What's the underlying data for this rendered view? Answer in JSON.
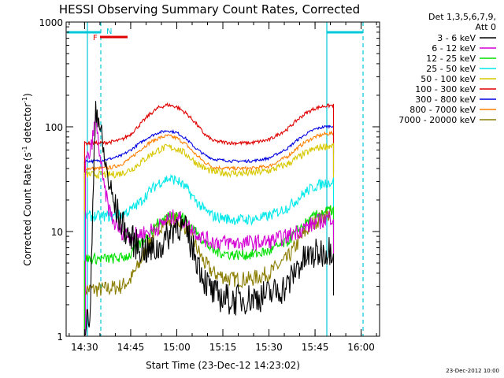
{
  "chart_data": {
    "type": "line",
    "title": "HESSI Observing Summary Count Rates, Corrected",
    "xlabel": "Start Time (23-Dec-12 14:23:02)",
    "ylabel": "Corrected Count Rate (s",
    "ylabel_sup1": "-1",
    "ylabel_mid": " detector",
    "ylabel_sup2": "-1",
    "ylabel_end": ")",
    "y_scale": "log",
    "ylim": [
      1,
      1000
    ],
    "xlim_minutes": [
      14.4,
      16.1
    ],
    "x_ticks": [
      {
        "at": 14.5,
        "label": "14:30"
      },
      {
        "at": 14.75,
        "label": "14:45"
      },
      {
        "at": 15.0,
        "label": "15:00"
      },
      {
        "at": 15.25,
        "label": "15:15"
      },
      {
        "at": 15.5,
        "label": "15:30"
      },
      {
        "at": 15.75,
        "label": "15:45"
      },
      {
        "at": 16.0,
        "label": "16:00"
      }
    ],
    "y_ticks": [
      {
        "at": 1,
        "label": "1"
      },
      {
        "at": 10,
        "label": "10"
      },
      {
        "at": 100,
        "label": "100"
      },
      {
        "at": 1000,
        "label": "1000"
      }
    ],
    "legend_header": [
      "Det 1,3,5,6,7,9,",
      "Att 0"
    ],
    "legend_placement": "right",
    "series": [
      {
        "name": "3 - 6 keV",
        "color": "#000000",
        "x": [
          14.5,
          14.53,
          14.56,
          14.58,
          14.6,
          14.63,
          14.66,
          14.7,
          14.75,
          14.8,
          14.85,
          14.9,
          14.95,
          15.0,
          15.05,
          15.1,
          15.15,
          15.2,
          15.3,
          15.4,
          15.5,
          15.6,
          15.65,
          15.7,
          15.75,
          15.8,
          15.85
        ],
        "y": [
          1.2,
          1.6,
          170,
          110,
          60,
          30,
          18,
          12,
          8.5,
          7,
          6.5,
          6.8,
          9,
          12,
          10,
          6,
          3.5,
          2.5,
          2.2,
          2.3,
          2.5,
          3,
          4.5,
          5.5,
          6,
          6.5,
          7
        ]
      },
      {
        "name": "6 - 12 keV",
        "color": "#d400d4",
        "x": [
          14.5,
          14.53,
          14.56,
          14.58,
          14.6,
          14.63,
          14.66,
          14.7,
          14.75,
          14.8,
          14.85,
          14.9,
          14.95,
          15.0,
          15.05,
          15.1,
          15.15,
          15.2,
          15.3,
          15.4,
          15.5,
          15.6,
          15.65,
          15.7,
          15.75,
          15.8,
          15.85
        ],
        "y": [
          45,
          55,
          120,
          60,
          30,
          17,
          12,
          10,
          9,
          9.5,
          10,
          11,
          13,
          14,
          12,
          10,
          8.5,
          8,
          7.8,
          7.8,
          8,
          9,
          10,
          11,
          12,
          13,
          14
        ]
      },
      {
        "name": "12 - 25 keV",
        "color": "#00e000",
        "x": [
          14.5,
          14.55,
          14.6,
          14.65,
          14.7,
          14.75,
          14.8,
          14.85,
          14.9,
          14.95,
          15.0,
          15.05,
          15.1,
          15.15,
          15.2,
          15.3,
          15.4,
          15.5,
          15.6,
          15.65,
          15.7,
          15.75,
          15.8,
          15.85
        ],
        "y": [
          5.5,
          5.5,
          5.5,
          5.5,
          5.6,
          6,
          7.5,
          9.5,
          12,
          14,
          15,
          13,
          10,
          8,
          6.5,
          6,
          6,
          6.5,
          8,
          10,
          12,
          14,
          15.5,
          16
        ]
      },
      {
        "name": "25 - 50 keV",
        "color": "#00e8e8",
        "x": [
          14.5,
          14.55,
          14.6,
          14.65,
          14.7,
          14.75,
          14.8,
          14.85,
          14.9,
          14.95,
          15.0,
          15.05,
          15.1,
          15.15,
          15.2,
          15.3,
          15.4,
          15.5,
          15.6,
          15.65,
          15.7,
          15.75,
          15.8,
          15.85
        ],
        "y": [
          14,
          14,
          14,
          14,
          14.5,
          16,
          19,
          24,
          29,
          32,
          31,
          26,
          20,
          16,
          14,
          13,
          13,
          14,
          17,
          20,
          24,
          27,
          29,
          30
        ]
      },
      {
        "name": "50 - 100 keV",
        "color": "#d8c800",
        "x": [
          14.5,
          14.55,
          14.6,
          14.65,
          14.7,
          14.75,
          14.8,
          14.85,
          14.9,
          14.95,
          15.0,
          15.05,
          15.1,
          15.15,
          15.2,
          15.3,
          15.4,
          15.5,
          15.6,
          15.65,
          15.7,
          15.75,
          15.8,
          15.85
        ],
        "y": [
          35,
          35,
          35,
          35,
          36,
          39,
          45,
          53,
          60,
          64,
          62,
          55,
          46,
          40,
          37,
          36,
          36,
          38,
          44,
          50,
          56,
          62,
          65,
          66
        ]
      },
      {
        "name": "100 - 300 keV",
        "color": "#e00000",
        "x": [
          14.5,
          14.55,
          14.6,
          14.65,
          14.7,
          14.75,
          14.8,
          14.85,
          14.9,
          14.95,
          15.0,
          15.05,
          15.1,
          15.15,
          15.2,
          15.3,
          15.4,
          15.5,
          15.6,
          15.65,
          15.7,
          15.75,
          15.8,
          15.85
        ],
        "y": [
          70,
          70,
          70,
          72,
          75,
          85,
          105,
          130,
          152,
          162,
          155,
          135,
          110,
          85,
          73,
          70,
          70,
          75,
          95,
          115,
          135,
          150,
          158,
          160
        ]
      },
      {
        "name": "300 - 800 keV",
        "color": "#0000e0",
        "x": [
          14.5,
          14.55,
          14.6,
          14.65,
          14.7,
          14.75,
          14.8,
          14.85,
          14.9,
          14.95,
          15.0,
          15.05,
          15.1,
          15.15,
          15.2,
          15.3,
          15.4,
          15.5,
          15.6,
          15.65,
          15.7,
          15.75,
          15.8,
          15.85
        ],
        "y": [
          47,
          47,
          48,
          50,
          53,
          60,
          70,
          80,
          88,
          92,
          88,
          77,
          63,
          54,
          49,
          47,
          47,
          50,
          62,
          74,
          85,
          95,
          100,
          102
        ]
      },
      {
        "name": "800 - 7000 keV",
        "color": "#ff8000",
        "x": [
          14.5,
          14.55,
          14.6,
          14.65,
          14.7,
          14.75,
          14.8,
          14.85,
          14.9,
          14.95,
          15.0,
          15.05,
          15.1,
          15.15,
          15.2,
          15.3,
          15.4,
          15.5,
          15.6,
          15.65,
          15.7,
          15.75,
          15.8,
          15.85
        ],
        "y": [
          40,
          40,
          40,
          41,
          44,
          50,
          60,
          70,
          78,
          82,
          78,
          68,
          55,
          46,
          41,
          40,
          40,
          42,
          52,
          62,
          72,
          80,
          85,
          87
        ]
      },
      {
        "name": "7000 - 20000 keV",
        "color": "#8b7d00",
        "x": [
          14.5,
          14.55,
          14.6,
          14.65,
          14.7,
          14.75,
          14.8,
          14.85,
          14.9,
          14.95,
          15.0,
          15.05,
          15.1,
          15.15,
          15.2,
          15.3,
          15.4,
          15.5,
          15.6,
          15.65,
          15.7,
          15.75,
          15.8,
          15.85
        ],
        "y": [
          2.8,
          2.8,
          2.8,
          2.9,
          3.0,
          3.5,
          5.0,
          8.0,
          11,
          13,
          13,
          11,
          7.5,
          5,
          4,
          3.5,
          3.5,
          4,
          5.5,
          7.5,
          10,
          12.5,
          14,
          15
        ]
      }
    ],
    "annotations": {
      "N_label": "N",
      "F_label": "F",
      "stamp": "23-Dec-2012 10:00"
    }
  }
}
